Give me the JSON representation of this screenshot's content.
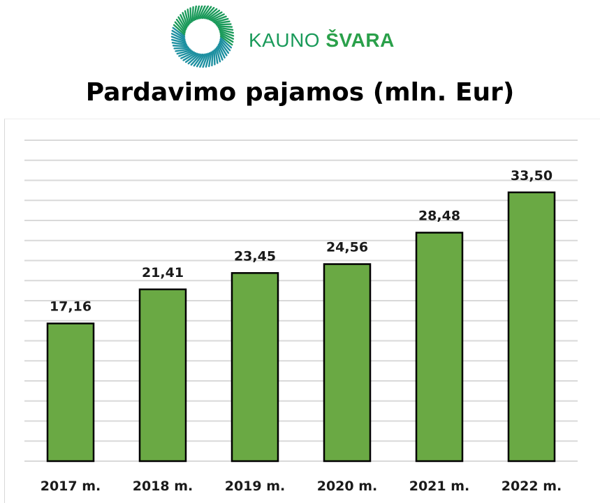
{
  "brand": {
    "name_light": "KAUNO ",
    "name_bold": "ŠVARA"
  },
  "colors": {
    "bar": "#6aa944",
    "logo_green": "#1a9a5a",
    "logo_teal": "#1c8fa0"
  },
  "chart_data": {
    "type": "bar",
    "title": "Pardavimo pajamos (mln. Eur)",
    "categories": [
      "2017 m.",
      "2018 m.",
      "2019 m.",
      "2020 m.",
      "2021 m.",
      "2022 m."
    ],
    "values": [
      17.16,
      21.41,
      23.45,
      24.56,
      28.48,
      33.5
    ],
    "data_labels": [
      "17,16",
      "21,41",
      "23,45",
      "24,56",
      "28,48",
      "33,50"
    ],
    "ylim": [
      0,
      40
    ],
    "grid": true,
    "legend": "none"
  }
}
